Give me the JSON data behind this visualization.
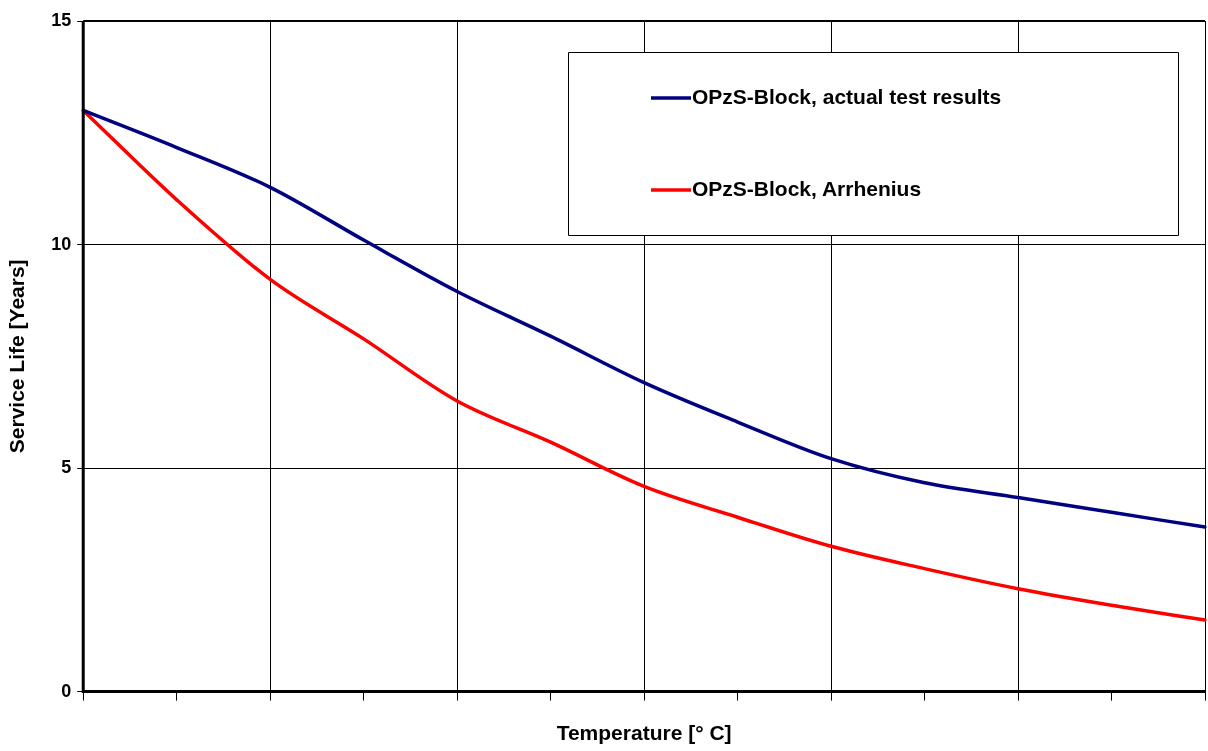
{
  "chart_data": {
    "type": "line",
    "xlabel": "Temperature [° C]",
    "ylabel": "Service Life [Years]",
    "categories": [
      null,
      null,
      null,
      null,
      null,
      null,
      null,
      null,
      null,
      null,
      null,
      null,
      null
    ],
    "series": [
      {
        "name": "OPzS-Block, actual test results",
        "color": "#000080",
        "values": [
          13.0,
          12.17,
          11.28,
          10.1,
          8.95,
          7.95,
          6.91,
          6.03,
          5.21,
          4.67,
          4.34,
          4.01,
          3.68
        ]
      },
      {
        "name": "OPzS-Block, Arrhenius",
        "color": "#ff0000",
        "values": [
          13.0,
          11.0,
          9.22,
          7.89,
          6.5,
          5.58,
          4.59,
          3.9,
          3.25,
          2.75,
          2.3,
          1.93,
          1.6
        ]
      }
    ],
    "ylim": [
      0,
      15
    ],
    "yticks": [
      0,
      5,
      10,
      15
    ],
    "grid": true,
    "legend": "top right",
    "marker": "none",
    "line_style": "solid",
    "tick_labels": "y"
  }
}
